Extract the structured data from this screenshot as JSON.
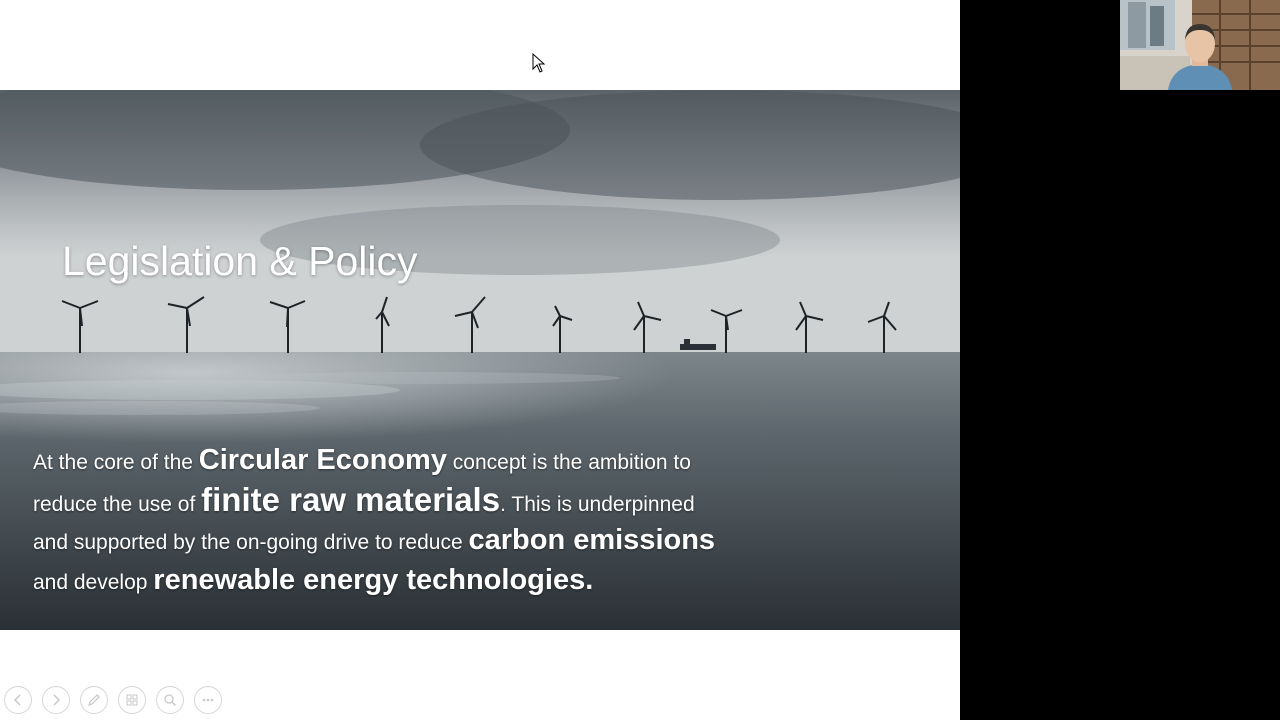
{
  "slide": {
    "title": "Legislation & Policy",
    "body": {
      "l1a": "At the core of the ",
      "l1b": "Circular Economy",
      "l1c": " concept is the ambition to",
      "l2a": "reduce the use of ",
      "l2b": "finite raw materials",
      "l2c": ".  This is underpinned",
      "l3a": "and supported by the on-going drive to reduce ",
      "l3b": "carbon emissions",
      "l4a": "and develop ",
      "l4b": "renewable energy technologies."
    }
  },
  "toolbar": {
    "buttons": [
      {
        "name": "previous-slide",
        "icon": "arrow-left-icon"
      },
      {
        "name": "next-slide",
        "icon": "arrow-right-icon"
      },
      {
        "name": "pen",
        "icon": "pen-icon"
      },
      {
        "name": "slides-grid",
        "icon": "grid-icon"
      },
      {
        "name": "zoom",
        "icon": "magnifier-icon"
      },
      {
        "name": "more-options",
        "icon": "more-icon"
      }
    ]
  },
  "colors": {
    "background": "#000000",
    "slide_background": "#ffffff",
    "text": "#ffffff"
  }
}
